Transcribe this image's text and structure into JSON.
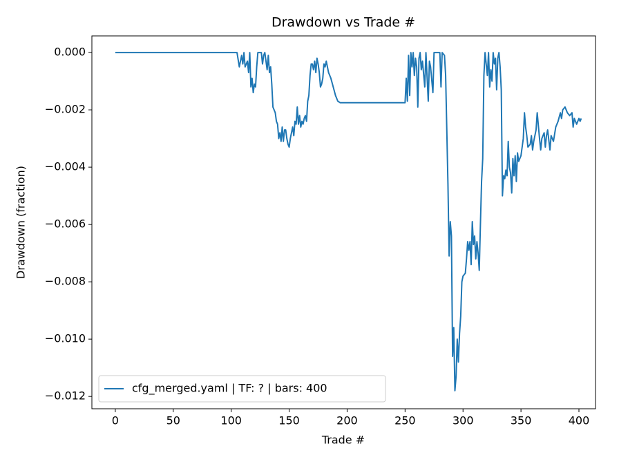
{
  "chart_data": {
    "type": "line",
    "title": "Drawdown vs Trade #",
    "x_label": "Trade #",
    "y_label": "Drawdown (fraction)",
    "x": [
      0,
      105,
      107,
      109,
      110,
      111,
      112,
      114,
      115,
      116,
      117,
      118,
      119,
      120,
      121,
      122,
      123,
      126,
      127,
      128,
      129,
      130,
      131,
      132,
      133,
      134,
      135,
      136,
      137,
      138,
      139,
      140,
      141,
      142,
      143,
      144,
      145,
      146,
      147,
      148,
      149,
      150,
      151,
      152,
      153,
      154,
      155,
      156,
      157,
      158,
      159,
      160,
      161,
      162,
      163,
      164,
      165,
      166,
      167,
      168,
      169,
      170,
      171,
      172,
      173,
      174,
      175,
      176,
      177,
      178,
      179,
      180,
      181,
      182,
      183,
      184,
      186,
      188,
      190,
      192,
      194,
      250,
      251,
      252,
      253,
      254,
      255,
      256,
      257,
      258,
      259,
      260,
      261,
      262,
      263,
      264,
      265,
      267,
      268,
      270,
      271,
      272,
      274,
      275,
      280,
      281,
      282,
      284,
      285,
      287,
      288,
      289,
      290,
      291,
      292,
      293,
      294,
      295,
      296,
      297,
      298,
      299,
      300,
      302,
      303,
      304,
      305,
      306,
      307,
      308,
      309,
      310,
      311,
      312,
      313,
      314,
      315,
      316,
      317,
      318,
      319,
      320,
      321,
      322,
      323,
      324,
      325,
      326,
      327,
      328,
      329,
      330,
      331,
      332,
      333,
      334,
      335,
      336,
      337,
      338,
      339,
      340,
      341,
      342,
      343,
      344,
      345,
      346,
      347,
      348,
      350,
      351,
      352,
      353,
      354,
      355,
      356,
      358,
      359,
      360,
      361,
      363,
      364,
      366,
      367,
      368,
      370,
      371,
      372,
      373,
      375,
      376,
      378,
      380,
      382,
      384,
      385,
      386,
      388,
      390,
      392,
      394,
      395,
      396,
      398,
      400,
      401,
      402
    ],
    "series": [
      {
        "name": "cfg_merged.yaml | TF: ? | bars: 400",
        "color": "#1f77b4",
        "values": [
          0,
          0,
          -0.0005,
          -0.0001,
          -0.0004,
          0,
          -0.0005,
          -0.0003,
          -0.0007,
          0,
          -0.0012,
          -0.0009,
          -0.0014,
          -0.0011,
          -0.0012,
          -0.0005,
          0,
          0,
          -0.0004,
          -0.0001,
          0,
          -0.0003,
          -0.0006,
          -0.0001,
          -0.0007,
          -0.0005,
          -0.0011,
          -0.0019,
          -0.002,
          -0.0021,
          -0.0024,
          -0.0025,
          -0.003,
          -0.0028,
          -0.0031,
          -0.0026,
          -0.0031,
          -0.0027,
          -0.0027,
          -0.003,
          -0.0032,
          -0.0033,
          -0.003,
          -0.0028,
          -0.0026,
          -0.0029,
          -0.0024,
          -0.0025,
          -0.0019,
          -0.0025,
          -0.0022,
          -0.0026,
          -0.0024,
          -0.0025,
          -0.0023,
          -0.0022,
          -0.0024,
          -0.0017,
          -0.0015,
          -0.0008,
          -0.0004,
          -0.0004,
          -0.0006,
          -0.0003,
          -0.0007,
          -0.0002,
          -0.0004,
          -0.0007,
          -0.0012,
          -0.0011,
          -0.0009,
          -0.0004,
          -0.0005,
          -0.0003,
          -0.0005,
          -0.0007,
          -0.0009,
          -0.0012,
          -0.0015,
          -0.0017,
          -0.00175,
          -0.00175,
          -0.0009,
          -0.0017,
          -0.0001,
          -0.0015,
          0,
          -0.0005,
          0,
          -0.0008,
          -0.0002,
          -0.0005,
          -0.0019,
          -0.0002,
          0,
          -0.0006,
          -0.0003,
          -0.0012,
          0,
          -0.0017,
          -0.0003,
          -0.0005,
          -0.0014,
          0,
          0,
          -0.0012,
          0,
          -0.0001,
          -0.0008,
          -0.0046,
          -0.0071,
          -0.0059,
          -0.0064,
          -0.0106,
          -0.0096,
          -0.0118,
          -0.0113,
          -0.01,
          -0.0108,
          -0.0098,
          -0.0092,
          -0.008,
          -0.0078,
          -0.0077,
          -0.0072,
          -0.0066,
          -0.0069,
          -0.0066,
          -0.0074,
          -0.0059,
          -0.0067,
          -0.0064,
          -0.0072,
          -0.0066,
          -0.007,
          -0.0076,
          -0.006,
          -0.0045,
          -0.0037,
          -0.0008,
          0,
          -0.0004,
          -0.0008,
          0,
          -0.0012,
          -0.0006,
          -0.001,
          0,
          -0.0004,
          -0.0002,
          -0.0013,
          -0.0002,
          0,
          -0.0005,
          -0.0013,
          -0.005,
          -0.0043,
          -0.0044,
          -0.0041,
          -0.0043,
          -0.0031,
          -0.004,
          -0.0042,
          -0.0049,
          -0.0037,
          -0.0043,
          -0.0036,
          -0.0045,
          -0.0035,
          -0.0038,
          -0.0036,
          -0.0033,
          -0.003,
          -0.0021,
          -0.0026,
          -0.0029,
          -0.0033,
          -0.0032,
          -0.0029,
          -0.0034,
          -0.0031,
          -0.0027,
          -0.0021,
          -0.003,
          -0.0034,
          -0.003,
          -0.0028,
          -0.0033,
          -0.0029,
          -0.0027,
          -0.0034,
          -0.0029,
          -0.0031,
          -0.0026,
          -0.0024,
          -0.0021,
          -0.0023,
          -0.002,
          -0.0019,
          -0.0021,
          -0.0022,
          -0.0021,
          -0.0026,
          -0.0023,
          -0.0025,
          -0.0023,
          -0.0024,
          -0.0023
        ]
      }
    ],
    "xlim": [
      -20.2,
      414.3
    ],
    "ylim": [
      -0.01243,
      0.00058
    ],
    "xticks": [
      0,
      50,
      100,
      150,
      200,
      250,
      300,
      350,
      400
    ],
    "yticks": [
      {
        "value": 0,
        "label": "0.000"
      },
      {
        "value": -0.002,
        "label": "−0.002"
      },
      {
        "value": -0.004,
        "label": "−0.004"
      },
      {
        "value": -0.006,
        "label": "−0.006"
      },
      {
        "value": -0.008,
        "label": "−0.008"
      },
      {
        "value": -0.01,
        "label": "−0.010"
      },
      {
        "value": -0.012,
        "label": "−0.012"
      }
    ],
    "grid": false,
    "legend_position": "lower left"
  }
}
